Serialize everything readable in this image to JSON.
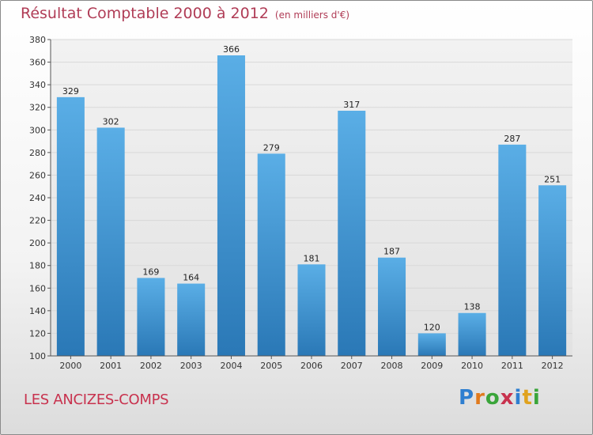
{
  "header": {
    "title": "Résultat Comptable 2000 à 2012",
    "subtitle": "(en milliers d'€)"
  },
  "footer": {
    "commune": "LES ANCIZES-COMPS",
    "logo": "Proxiti"
  },
  "colors": {
    "bar_top": "#5aaee6",
    "bar_bottom": "#2a78b6",
    "title": "#b03c56",
    "commune": "#c8324e",
    "grid": "#d8d8d8",
    "logo_letters": [
      "#2f7fd0",
      "#e07a1e",
      "#3aa53a",
      "#c8324e",
      "#2f7fd0",
      "#e0a21e",
      "#3aa53a"
    ]
  },
  "chart_data": {
    "type": "bar",
    "title": "Résultat Comptable 2000 à 2012",
    "subtitle": "(en milliers d'€)",
    "categories": [
      "2000",
      "2001",
      "2002",
      "2003",
      "2004",
      "2005",
      "2006",
      "2007",
      "2008",
      "2009",
      "2010",
      "2011",
      "2012"
    ],
    "values": [
      329,
      302,
      169,
      164,
      366,
      279,
      181,
      317,
      187,
      120,
      138,
      287,
      251
    ],
    "xlabel": "",
    "ylabel": "",
    "ylim": [
      100,
      380
    ],
    "yticks": [
      100,
      120,
      140,
      160,
      180,
      200,
      220,
      240,
      260,
      280,
      300,
      320,
      340,
      360,
      380
    ],
    "grid": true,
    "legend": "none"
  }
}
